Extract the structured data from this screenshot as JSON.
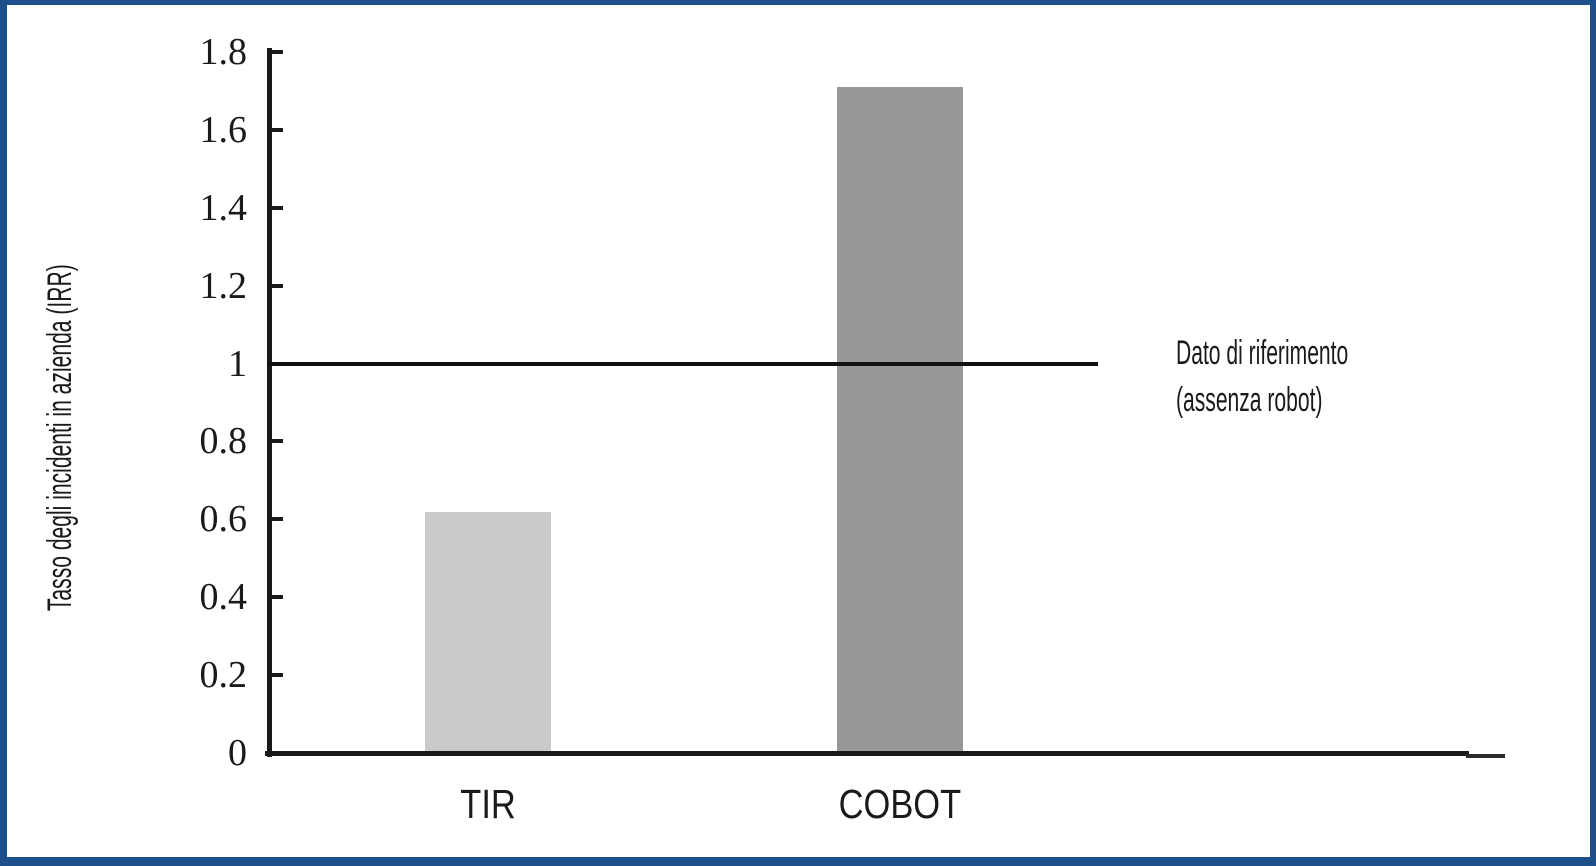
{
  "figure": {
    "border_color": "#1d4f8a",
    "background": "#ffffff"
  },
  "chart_data": {
    "type": "bar",
    "title": "",
    "categories": [
      "TIR",
      "COBOT"
    ],
    "values": [
      0.62,
      1.71
    ],
    "bar_colors": [
      "#cacaca",
      "#98979a"
    ],
    "ylabel": "Tasso degli incidenti in azienda (IRR)",
    "xlabel": "",
    "ylim": [
      0,
      1.8
    ],
    "yticks": [
      0,
      0.2,
      0.4,
      0.6,
      0.8,
      1,
      1.2,
      1.4,
      1.6,
      1.8
    ],
    "ytick_labels": [
      "0",
      "0.2",
      "0.4",
      "0.6",
      "0.8",
      "1",
      "1.2",
      "1.4",
      "1.6",
      "1.8"
    ],
    "grid": false,
    "legend": "none",
    "axis_color": "#1a1a1a",
    "reference_line": {
      "value": 1,
      "color": "#111111",
      "label_lines": [
        "Dato di riferimento",
        "(assenza robot)"
      ]
    }
  }
}
